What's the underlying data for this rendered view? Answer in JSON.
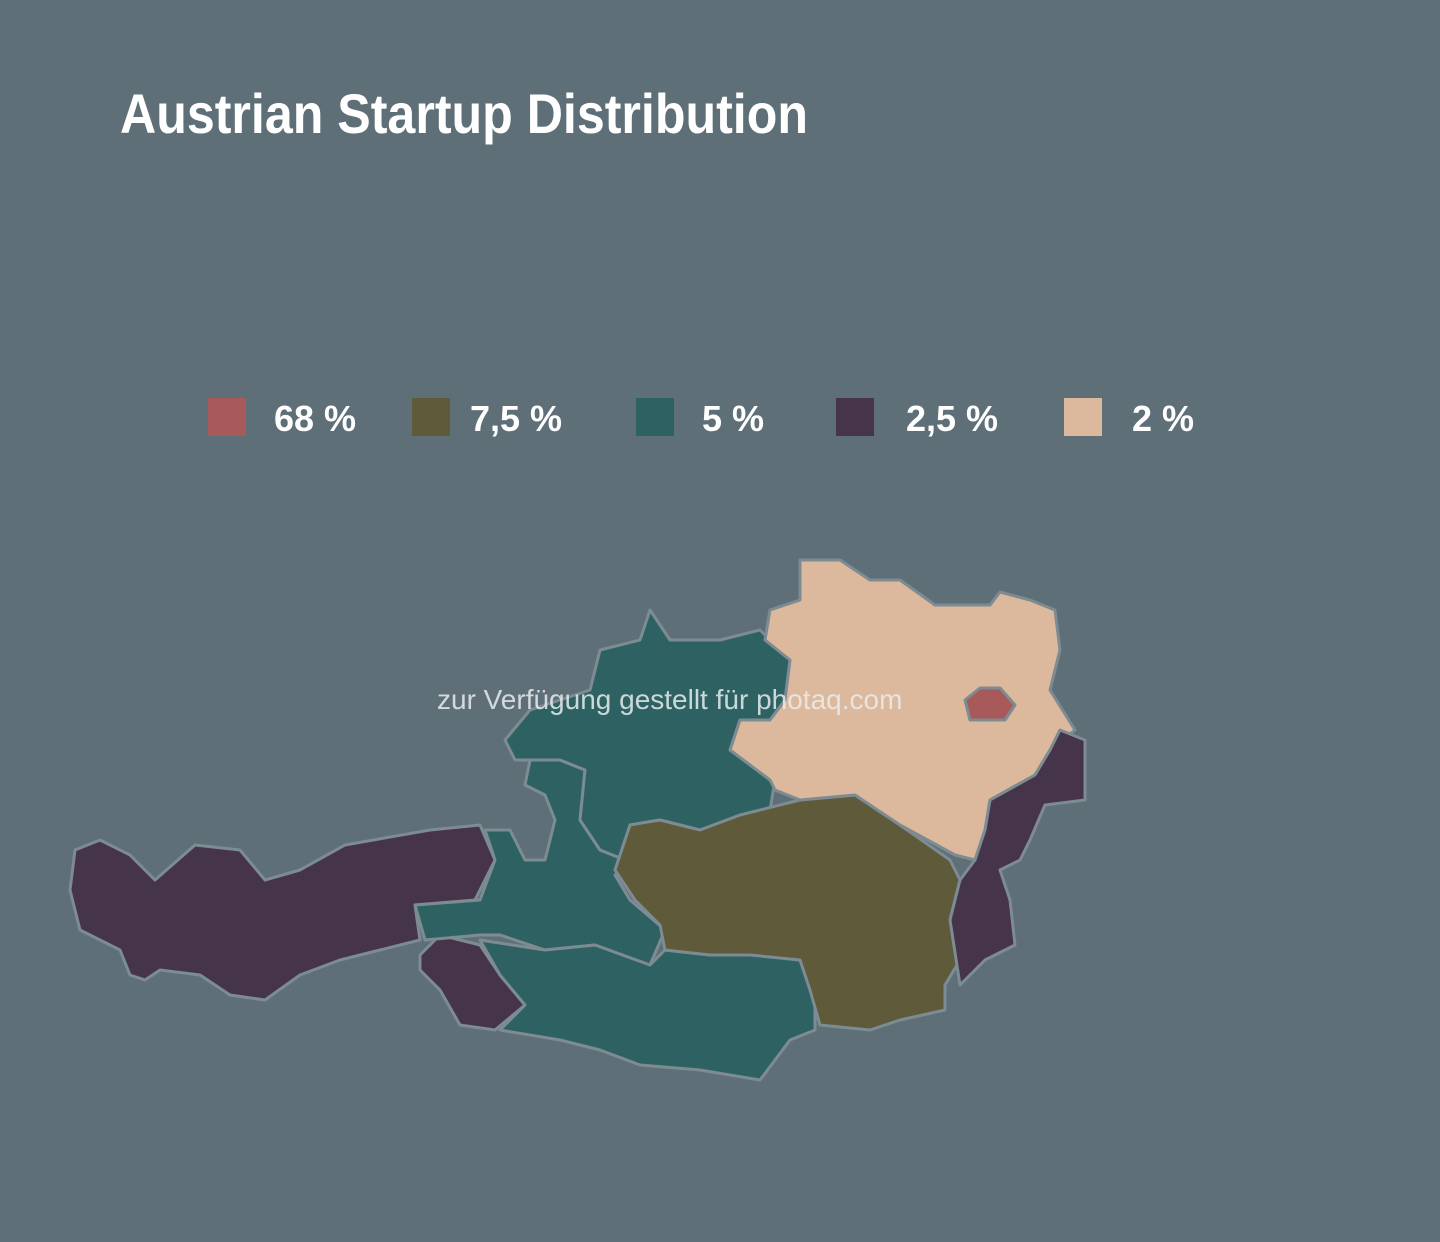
{
  "title": "Austrian Startup Distribution",
  "legend": [
    {
      "value": 68,
      "label": "68 %",
      "color": "#a85a5a"
    },
    {
      "value": 7.5,
      "label": "7,5 %",
      "color": "#5e5a3a"
    },
    {
      "value": 5,
      "label": "5 %",
      "color": "#2e6262"
    },
    {
      "value": 2.5,
      "label": "2,5 %",
      "color": "#45344a"
    },
    {
      "value": 2,
      "label": "2 %",
      "color": "#dcb89c"
    }
  ],
  "watermark": "zur Verfügung gestellt für photaq.com"
}
